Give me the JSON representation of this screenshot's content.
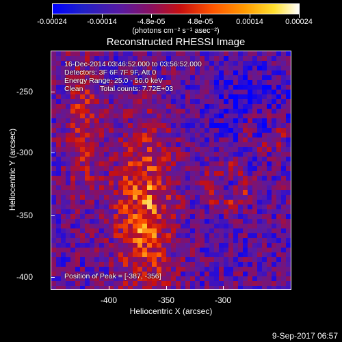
{
  "colorbar": {
    "gradient_colors": [
      "#0000ff",
      "#5a1aa0",
      "#c81010",
      "#ff9a00",
      "#ffffff"
    ],
    "tick_labels": [
      "-0.00024",
      "-0.00014",
      "-4.8e-05",
      "4.8e-05",
      "0.00014",
      "0.00024"
    ],
    "units": "(photons cm⁻² s⁻¹ asec⁻²)"
  },
  "title": "Reconstructed RHESSI Image",
  "annotations": {
    "time_range": "16-Dec-2014 03:46:52.000 to 03:56:52.000",
    "detectors": "Detectors: 3F 6F 7F 9F, Att 0",
    "energy": "Energy Range: 25.0 - 50.0 keV",
    "algorithm": "Clean",
    "total_counts": "Total counts: 7.72E+03",
    "peak": "Position of Peak = [-387, -356]"
  },
  "axes": {
    "xlabel": "Heliocentric X (arcsec)",
    "ylabel": "Heliocentric Y (arcsec)",
    "xticks": [
      "-400",
      "-350",
      "-300"
    ],
    "yticks": [
      "-250",
      "-300",
      "-350",
      "-400"
    ],
    "xlim": [
      -442,
      -232
    ],
    "ylim": [
      -420,
      -211
    ]
  },
  "timestamp": "9-Sep-2017 06:57",
  "chart_data": {
    "type": "heatmap",
    "title": "Reconstructed RHESSI Image",
    "xlabel": "Heliocentric X (arcsec)",
    "ylabel": "Heliocentric Y (arcsec)",
    "x_range": [
      -442,
      -232
    ],
    "y_range": [
      -420,
      -211
    ],
    "value_range": [
      -0.00024,
      0.00024
    ],
    "colorbar_ticks": [
      -0.00024,
      -0.00014,
      -4.8e-05,
      4.8e-05,
      0.00014,
      0.00024
    ],
    "peak_position": [
      -387,
      -356
    ]
  }
}
